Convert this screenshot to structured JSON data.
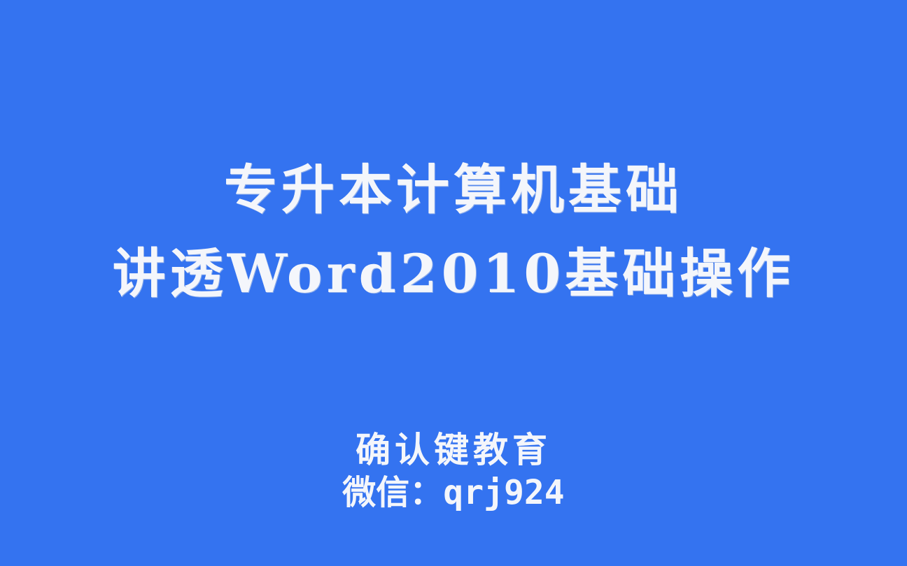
{
  "background_color": "#3473F0",
  "text_color": "#F4F6FB",
  "title": {
    "line1": "专升本计算机基础",
    "line2": "讲透Word2010基础操作"
  },
  "footer": {
    "org_name": "确认键教育",
    "contact": "微信：qrj924"
  }
}
